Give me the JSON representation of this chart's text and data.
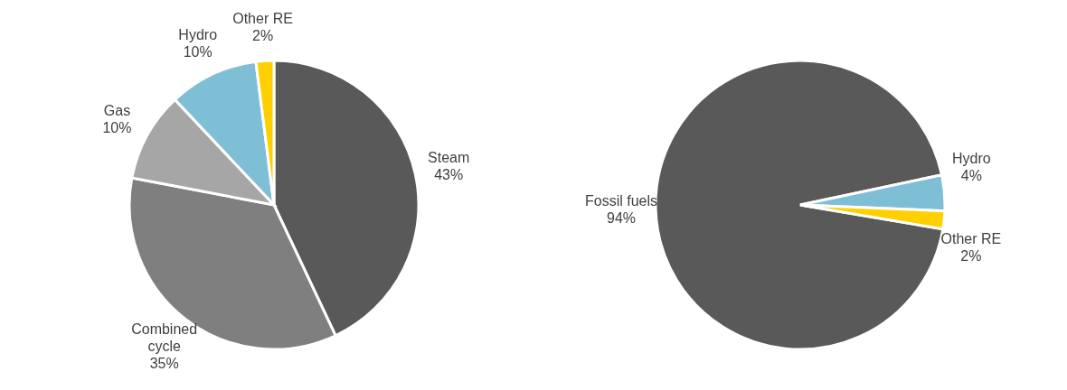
{
  "chart_data": [
    {
      "type": "pie",
      "categories": [
        "Steam",
        "Combined cycle",
        "Gas",
        "Hydro",
        "Other RE"
      ],
      "values": [
        43,
        35,
        10,
        10,
        2
      ],
      "value_labels": [
        "43%",
        "35%",
        "10%",
        "10%",
        "2%"
      ],
      "colors": [
        "#595959",
        "#7f7f7f",
        "#a6a6a6",
        "#7fbfd6",
        "#ffd000"
      ]
    },
    {
      "type": "pie",
      "categories": [
        "Fossil fuels",
        "Hydro",
        "Other RE"
      ],
      "values": [
        94,
        4,
        2
      ],
      "value_labels": [
        "94%",
        "4%",
        "2%"
      ],
      "colors": [
        "#595959",
        "#7fbfd6",
        "#ffd000"
      ]
    }
  ]
}
